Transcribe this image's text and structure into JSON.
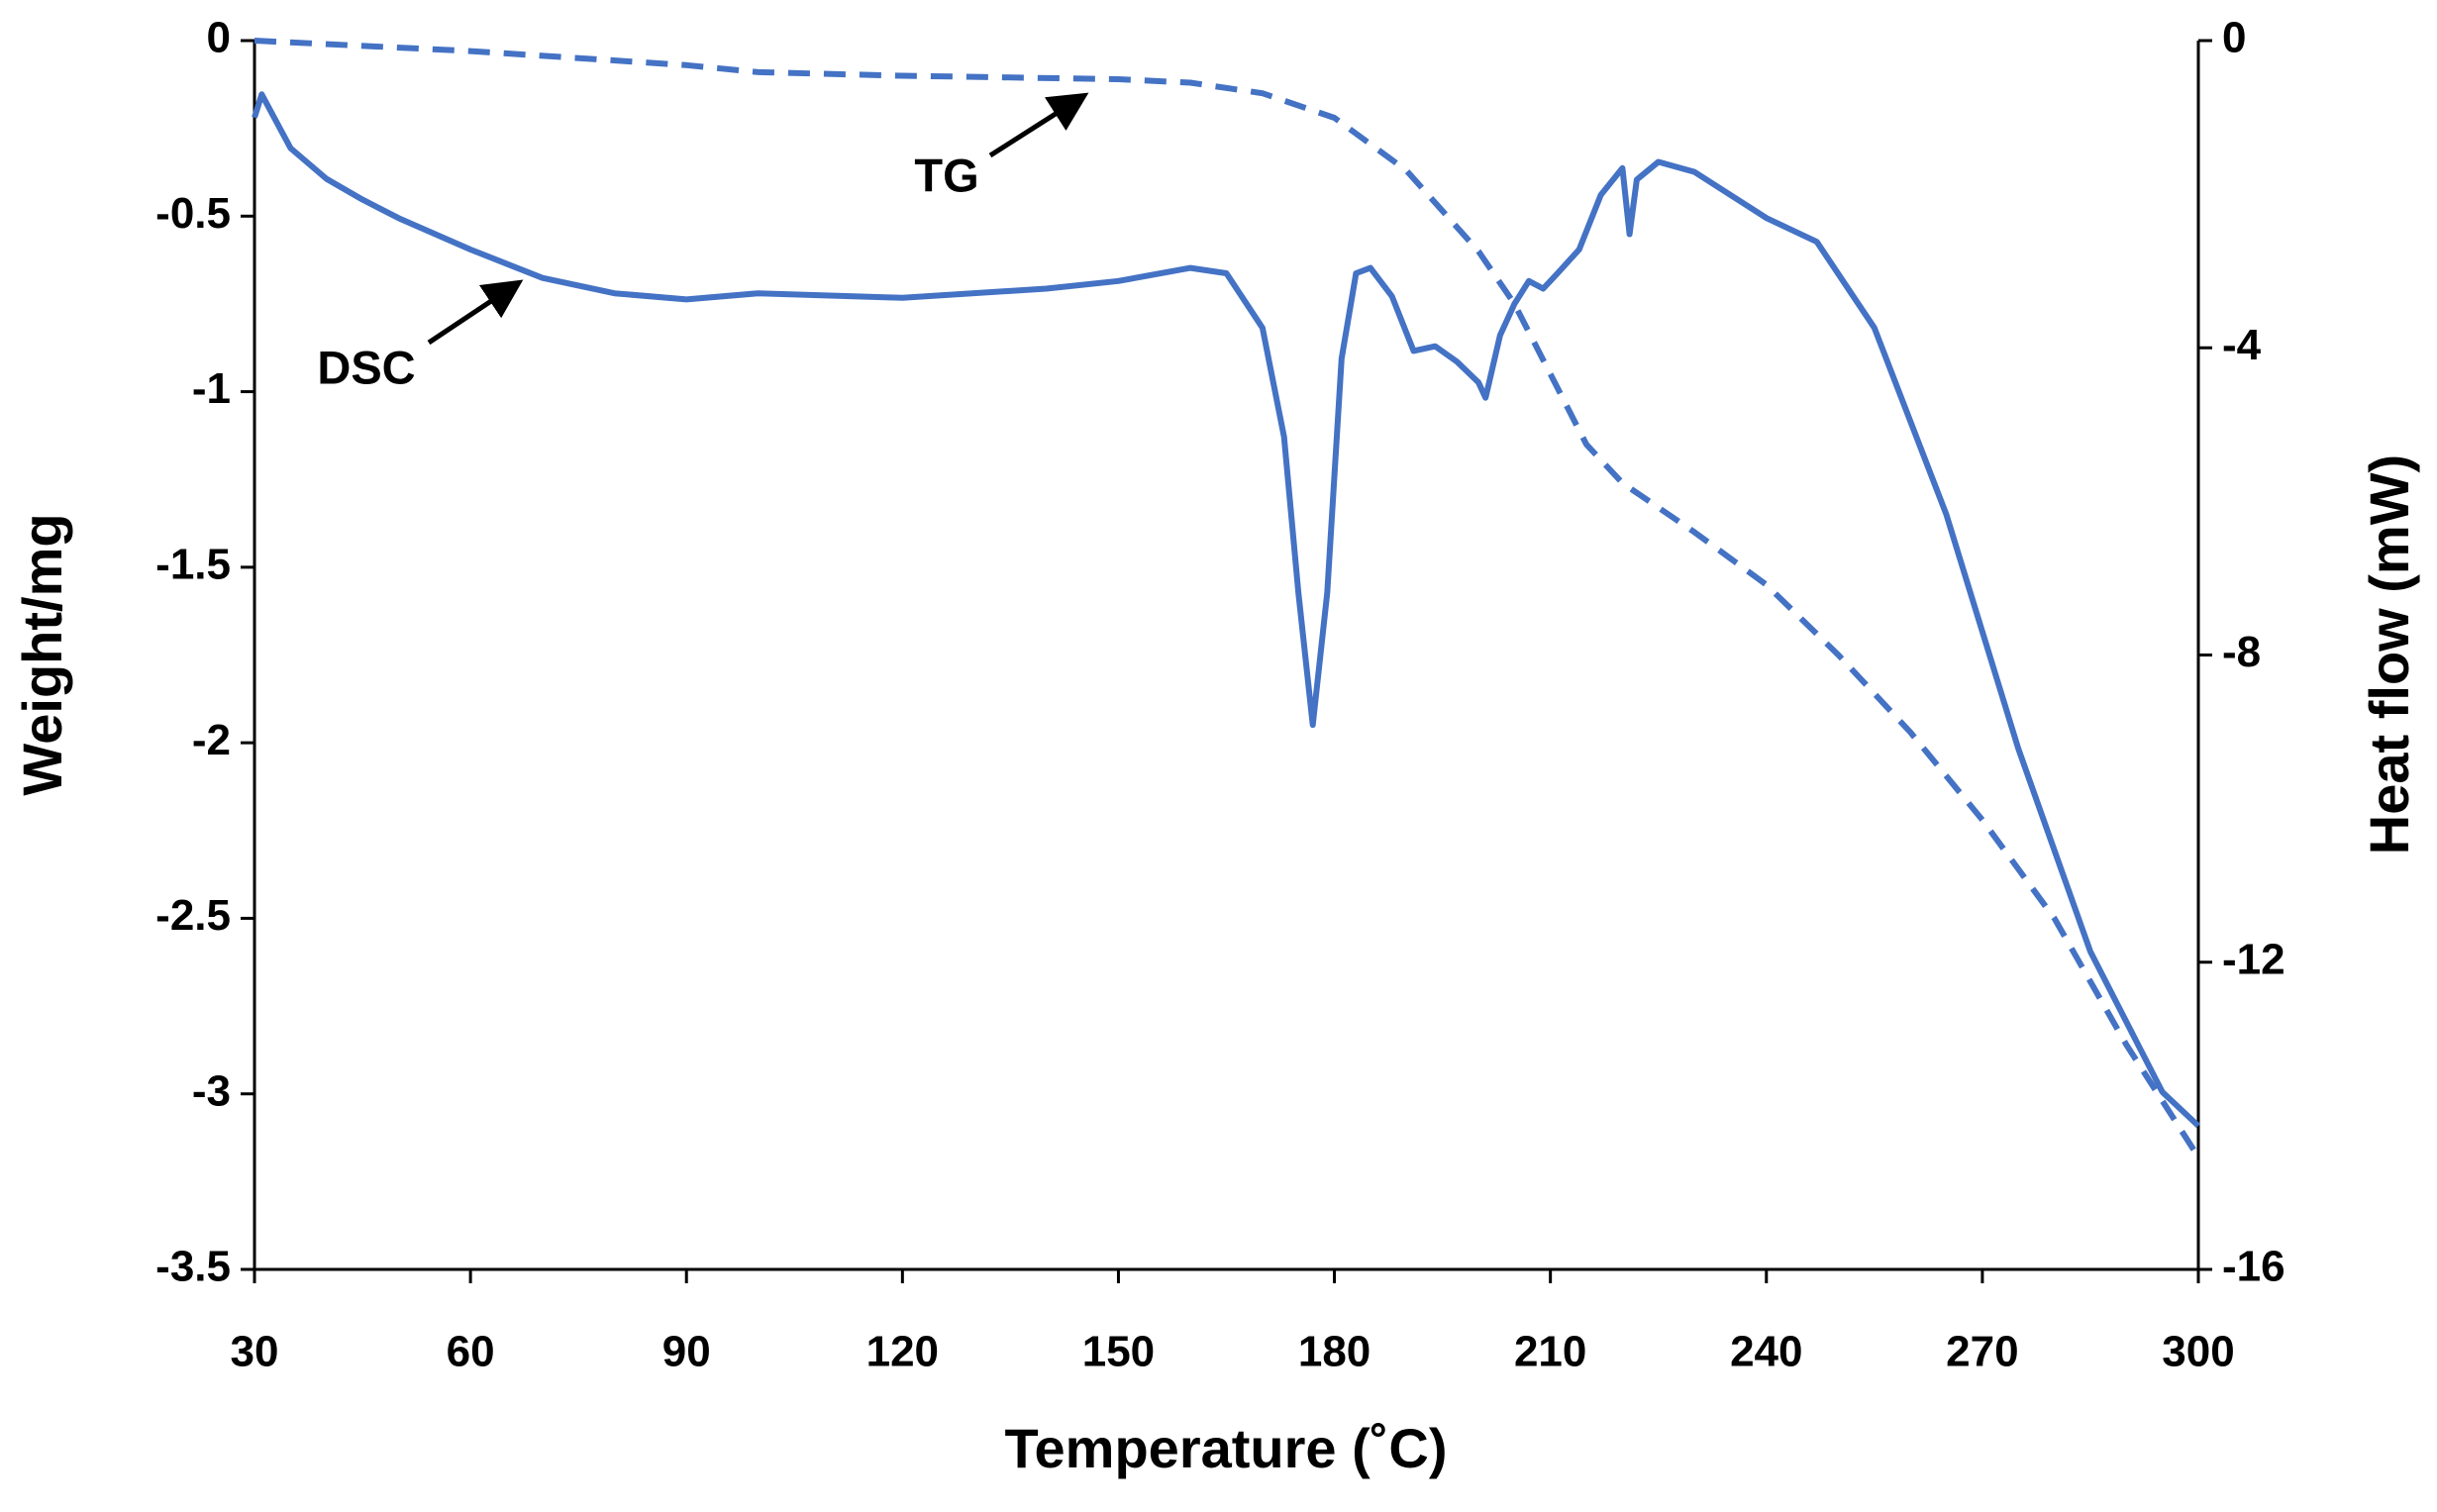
{
  "chart_data": {
    "type": "line",
    "xlabel": "Temperature (˚C)",
    "ylabel": "Weight/mg",
    "y2label": "Heat flow (mW)",
    "xlim": [
      30,
      300
    ],
    "xticks": [
      30,
      60,
      90,
      120,
      150,
      180,
      210,
      240,
      270,
      300
    ],
    "ylim": [
      -3.5,
      0
    ],
    "yticks": [
      -3.5,
      -3,
      -2.5,
      -2,
      -1.5,
      -1,
      -0.5,
      0
    ],
    "y2lim": [
      -16,
      0
    ],
    "y2ticks": [
      -16,
      -12,
      -8,
      -4,
      0
    ],
    "grid": false,
    "annotations": [
      "TG",
      "DSC"
    ],
    "series": [
      {
        "name": "TG",
        "color": "#4472c4",
        "dashed": true,
        "x": [
          30,
          60,
          90,
          100,
          120,
          150,
          160,
          170,
          180,
          190,
          200,
          205,
          210,
          215,
          220,
          230,
          240,
          250,
          260,
          270,
          280,
          290,
          300
        ],
        "values": [
          0,
          -0.03,
          -0.07,
          -0.09,
          -0.1,
          -0.11,
          -0.12,
          -0.15,
          -0.22,
          -0.37,
          -0.6,
          -0.75,
          -0.95,
          -1.15,
          -1.26,
          -1.4,
          -1.55,
          -1.75,
          -1.97,
          -2.22,
          -2.5,
          -2.86,
          -3.18
        ]
      },
      {
        "name": "DSC",
        "color": "#4472c4",
        "dashed": false,
        "axis": "y2",
        "x": [
          30,
          31,
          35,
          40,
          45,
          50,
          60,
          70,
          80,
          90,
          100,
          120,
          140,
          150,
          160,
          165,
          170,
          173,
          175,
          177,
          179,
          181,
          183,
          185,
          188,
          191,
          194,
          197,
          200,
          201,
          203,
          205,
          207,
          209,
          211,
          214,
          217,
          220,
          221,
          222,
          225,
          230,
          240,
          247,
          255,
          265,
          275,
          285,
          295,
          300
        ],
        "values": [
          -1.0,
          -0.7,
          -1.4,
          -1.8,
          -2.07,
          -2.31,
          -2.72,
          -3.09,
          -3.29,
          -3.37,
          -3.29,
          -3.35,
          -3.23,
          -3.13,
          -2.96,
          -3.03,
          -3.74,
          -5.16,
          -7.19,
          -8.91,
          -7.19,
          -4.14,
          -3.03,
          -2.96,
          -3.33,
          -4.04,
          -3.98,
          -4.18,
          -4.45,
          -4.65,
          -3.84,
          -3.43,
          -3.13,
          -3.23,
          -3.03,
          -2.72,
          -2.01,
          -1.66,
          -2.52,
          -1.81,
          -1.58,
          -1.71,
          -2.31,
          -2.62,
          -3.74,
          -6.17,
          -9.22,
          -11.86,
          -13.69,
          -14.13
        ]
      }
    ]
  }
}
